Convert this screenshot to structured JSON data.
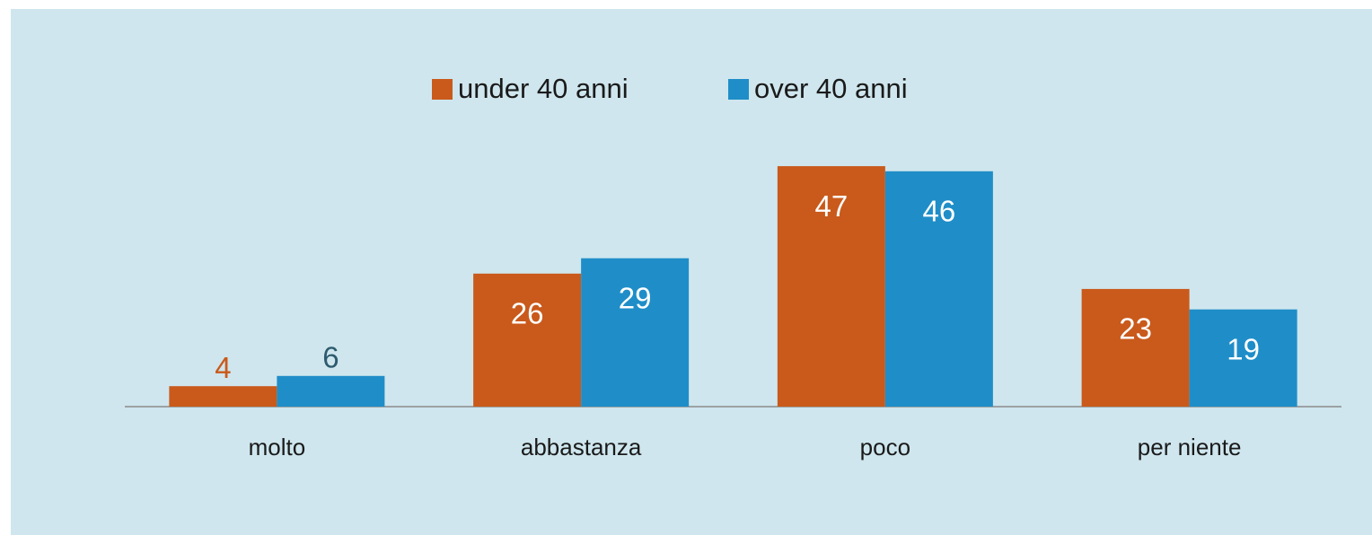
{
  "chart_data": {
    "type": "bar",
    "categories": [
      "molto",
      "abbastanza",
      "poco",
      "per niente"
    ],
    "series": [
      {
        "name": "under 40 anni",
        "color": "#c95a1b",
        "values": [
          4,
          26,
          47,
          23
        ]
      },
      {
        "name": "over 40 anni",
        "color": "#1f8ec8",
        "values": [
          6,
          29,
          46,
          19
        ]
      }
    ],
    "legend": "top"
  }
}
